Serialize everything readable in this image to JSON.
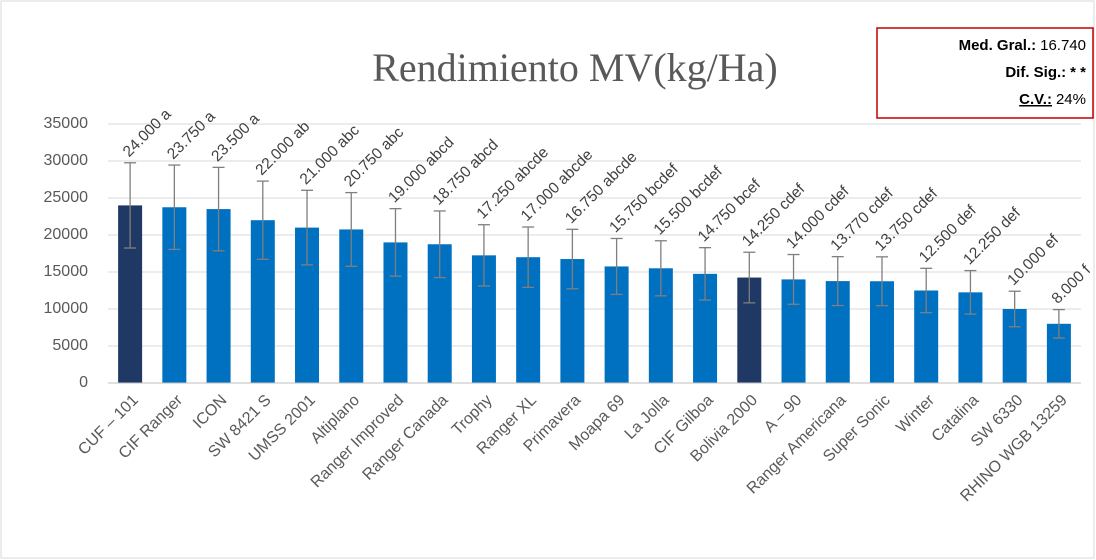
{
  "chart_data": {
    "type": "bar",
    "title": "Rendimiento MV(kg/Ha)",
    "categories": [
      "CUF – 101",
      "CIF Ranger",
      "ICON",
      "SW 8421 S",
      "UMSS 2001",
      "Altiplano",
      "Ranger Improved",
      "Ranger Canada",
      "Trophy",
      "Ranger XL",
      "Primavera",
      "Moapa 69",
      "La Jolla",
      "CIF Gilboa",
      "Bolivia 2000",
      "A – 90",
      "Ranger Americana",
      "Super Sonic",
      "Winter",
      "Catalina",
      "SW 6330",
      "RHINO WGB 13259"
    ],
    "values": [
      24000,
      23750,
      23500,
      22000,
      21000,
      20750,
      19000,
      18750,
      17250,
      17000,
      16750,
      15750,
      15500,
      14750,
      14250,
      14000,
      13770,
      13750,
      12500,
      12250,
      10000,
      8000
    ],
    "value_labels": [
      "24.000 a",
      "23.750  a",
      "23.500 a",
      "22.000 ab",
      "21.000 abc",
      "20.750 abc",
      "19.000 abcd",
      "18.750 abcd",
      "17.250 abcde",
      "17.000 abcde",
      "16.750 abcde",
      "15.750 bcdef",
      "15.500 bcdef",
      "14.750 bcef",
      "14.250 cdef",
      "14.000 cdef",
      "13.770 cdef",
      "13.750 cdef",
      "12.500 def",
      "12.250 def",
      "10.000  ef",
      "8.000 f"
    ],
    "errors": [
      5760,
      5700,
      5640,
      5280,
      5040,
      4980,
      4560,
      4500,
      4140,
      4080,
      4020,
      3780,
      3720,
      3540,
      3420,
      3360,
      3305,
      3300,
      3000,
      2940,
      2400,
      1920
    ],
    "colors": [
      "#203864",
      "#0070c0",
      "#0070c0",
      "#0070c0",
      "#0070c0",
      "#0070c0",
      "#0070c0",
      "#0070c0",
      "#0070c0",
      "#0070c0",
      "#0070c0",
      "#0070c0",
      "#0070c0",
      "#0070c0",
      "#203864",
      "#0070c0",
      "#0070c0",
      "#0070c0",
      "#0070c0",
      "#0070c0",
      "#0070c0",
      "#0070c0"
    ],
    "ylim": [
      0,
      35000
    ],
    "yticks": [
      0,
      5000,
      10000,
      15000,
      20000,
      25000,
      30000,
      35000
    ],
    "grid": true,
    "stats": [
      {
        "label": "Med. Gral.:",
        "value": "16.740"
      },
      {
        "label": "Dif. Sig.:",
        "value": "* *"
      },
      {
        "label": "C.V.:",
        "value": "24%"
      }
    ]
  }
}
